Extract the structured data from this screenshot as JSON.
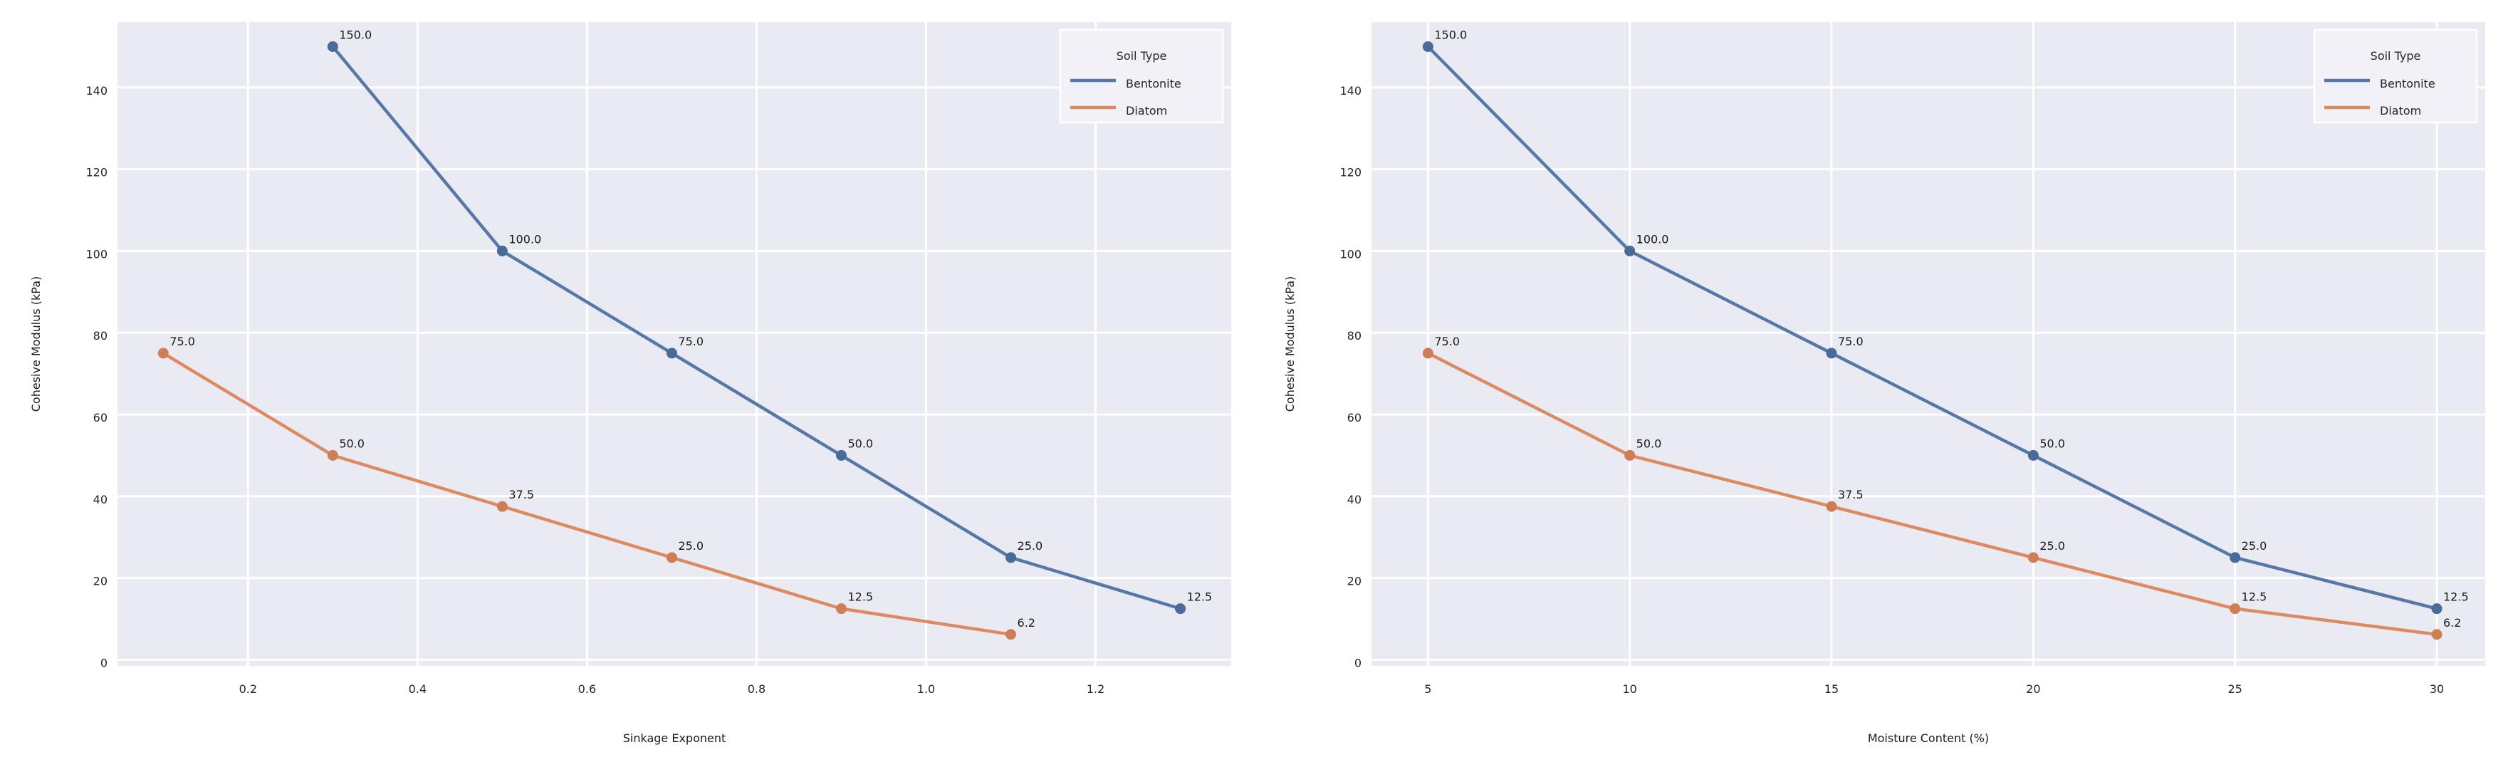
{
  "figure": {
    "background": "#ffffff",
    "plot_background": "#eaeaf2",
    "grid_color": "#ffffff",
    "text_color": "#262626",
    "annotation_color": "#1a1a1a"
  },
  "chart_data": [
    {
      "type": "line",
      "name": "sinkage-exponent-chart",
      "title": "",
      "xlabel": "Sinkage Exponent",
      "ylabel": "Cohesive Modulus (kPa)",
      "xlim": [
        0.046,
        1.36
      ],
      "ylim": [
        -1.5,
        156
      ],
      "grid": true,
      "xticks": {
        "values": [
          0.2,
          0.4,
          0.6,
          0.8,
          1.0,
          1.2
        ],
        "labels": [
          "0.2",
          "0.4",
          "0.6",
          "0.8",
          "1.0",
          "1.2"
        ]
      },
      "yticks": {
        "values": [
          0,
          20,
          40,
          60,
          80,
          100,
          120,
          140
        ],
        "labels": [
          "0",
          "20",
          "40",
          "60",
          "80",
          "100",
          "120",
          "140"
        ]
      },
      "legend": {
        "title": "Soil Type",
        "position": "upper-right"
      },
      "series": [
        {
          "name": "Bentonite",
          "color": "#5578a8",
          "marker_color": "#4a6a97",
          "x": [
            0.3,
            0.5,
            0.7,
            0.9,
            1.1,
            1.3
          ],
          "y": [
            150,
            100,
            75,
            50,
            25,
            12.5
          ],
          "point_labels": [
            "150.0",
            "100.0",
            "75.0",
            "50.0",
            "25.0",
            "12.5"
          ]
        },
        {
          "name": "Diatom",
          "color": "#dd8a62",
          "marker_color": "#cd7e55",
          "x": [
            0.1,
            0.3,
            0.5,
            0.7,
            0.9,
            1.1
          ],
          "y": [
            75,
            50,
            37.5,
            25,
            12.5,
            6.2
          ],
          "point_labels": [
            "75.0",
            "50.0",
            "37.5",
            "25.0",
            "12.5",
            "6.2"
          ]
        }
      ]
    },
    {
      "type": "line",
      "name": "moisture-content-chart",
      "title": "",
      "xlabel": "Moisture Content (%)",
      "ylabel": "Cohesive Modulus (kPa)",
      "xlim": [
        3.6,
        31.2
      ],
      "ylim": [
        -1.5,
        156
      ],
      "grid": true,
      "xticks": {
        "values": [
          5,
          10,
          15,
          20,
          25,
          30
        ],
        "labels": [
          "5",
          "10",
          "15",
          "20",
          "25",
          "30"
        ]
      },
      "yticks": {
        "values": [
          0,
          20,
          40,
          60,
          80,
          100,
          120,
          140
        ],
        "labels": [
          "0",
          "20",
          "40",
          "60",
          "80",
          "100",
          "120",
          "140"
        ]
      },
      "legend": {
        "title": "Soil Type",
        "position": "upper-right"
      },
      "series": [
        {
          "name": "Bentonite",
          "color": "#5578a8",
          "marker_color": "#4a6a97",
          "x": [
            5,
            10,
            15,
            20,
            25,
            30
          ],
          "y": [
            150,
            100,
            75,
            50,
            25,
            12.5
          ],
          "point_labels": [
            "150.0",
            "100.0",
            "75.0",
            "50.0",
            "25.0",
            "12.5"
          ]
        },
        {
          "name": "Diatom",
          "color": "#dd8a62",
          "marker_color": "#cd7e55",
          "x": [
            5,
            10,
            15,
            20,
            25,
            30
          ],
          "y": [
            75,
            50,
            37.5,
            25,
            12.5,
            6.2
          ],
          "point_labels": [
            "75.0",
            "50.0",
            "37.5",
            "25.0",
            "12.5",
            "6.2"
          ]
        }
      ]
    }
  ]
}
